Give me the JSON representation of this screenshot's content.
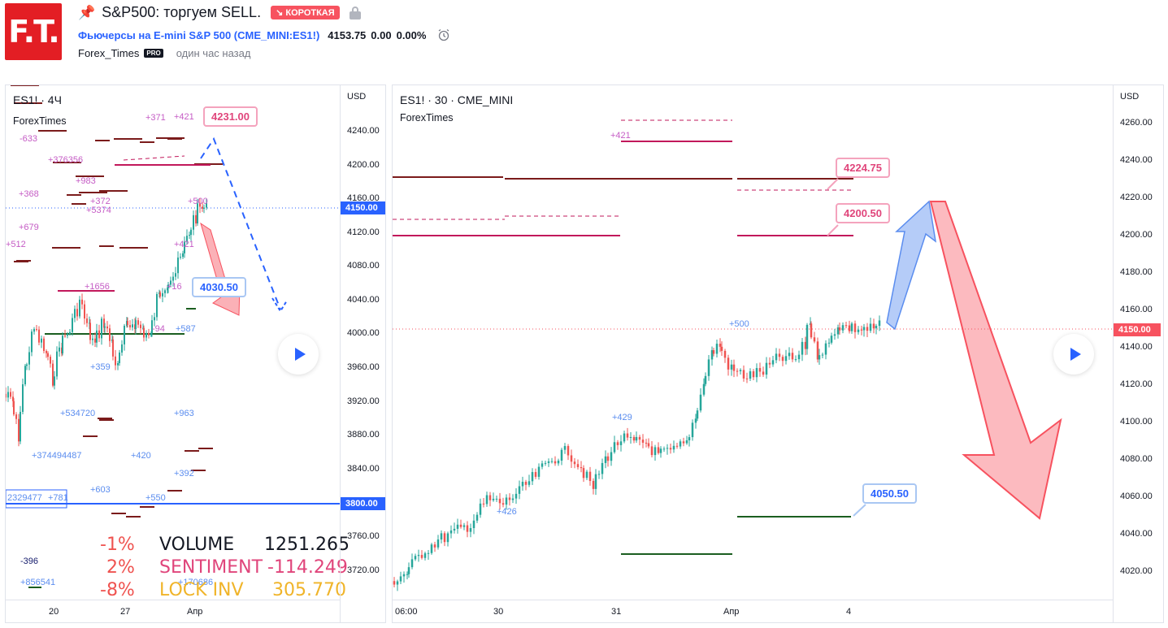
{
  "header": {
    "logo_text": "F.T.",
    "title": "S&P500: торгуем SELL.",
    "badge": "КОРОТКАЯ",
    "symbol_desc": "Фьючерсы на E-mini S&P 500",
    "symbol_code": "CME_MINI:ES1!",
    "last_price": "4153.75",
    "change": "0.00",
    "change_pct": "0.00%",
    "author": "Forex_Times",
    "author_badge": "PRO",
    "time_ago": "один час назад"
  },
  "left_chart": {
    "title": "ES1! · 4Ч",
    "subtitle": "ForexTimes",
    "unit": "USD",
    "y_ticks": [
      "4240.00",
      "4200.00",
      "4160.00",
      "4120.00",
      "4080.00",
      "4040.00",
      "4000.00",
      "3960.00",
      "3920.00",
      "3880.00",
      "3840.00",
      "3760.00",
      "3720.00"
    ],
    "x_ticks": [
      "20",
      "27",
      "Апр"
    ],
    "current_price": "4150.00",
    "line_price": "3800.00",
    "callout_sell": "4231.00",
    "callout_target": "4030.50",
    "annotations": [
      "+371",
      "+421",
      "-633",
      "+376356",
      "+983",
      "+368",
      "+372",
      "+5374",
      "+679",
      "+500",
      "+512",
      "+421",
      "+1656",
      "+16",
      "-94",
      "+587",
      "+359",
      "+534720",
      "+963",
      "+374494487",
      "+420",
      "+392",
      "+603",
      "+550",
      "2329477",
      "+781",
      "-396",
      "+856541",
      "+170686"
    ],
    "stats": [
      {
        "pct": "-1%",
        "name": "VOLUME",
        "value": "1251.265"
      },
      {
        "pct": "2%",
        "name": "SENTIMENT",
        "value": "-114.249"
      },
      {
        "pct": "-8%",
        "name": "LOCK INV",
        "value": "305.770"
      }
    ]
  },
  "right_chart": {
    "title": "ES1! · 30 · CME_MINI",
    "subtitle": "ForexTimes",
    "unit": "USD",
    "y_ticks": [
      "4260.00",
      "4240.00",
      "4220.00",
      "4200.00",
      "4180.00",
      "4160.00",
      "4140.00",
      "4120.00",
      "4100.00",
      "4080.00",
      "4060.00",
      "4040.00",
      "4020.00"
    ],
    "x_ticks": [
      "06:00",
      "30",
      "31",
      "Апр",
      "4"
    ],
    "current_price": "4150.00",
    "callout_1": "4224.75",
    "callout_2": "4200.50",
    "callout_3": "4050.50",
    "annotations": [
      "+421",
      "+500",
      "+429",
      "+426"
    ]
  },
  "colors": {
    "brand_red": "#e31e24",
    "short_badge": "#f7525f",
    "link_blue": "#2962ff",
    "price_tag": "#2962ff",
    "up_candle": "#26a69a",
    "down_candle": "#ef5350",
    "sell_arrow": "#f7525f",
    "buy_arrow": "#5b8def",
    "stat_pct": "#ef5350",
    "stat_volume": "#131722",
    "stat_sentiment": "#e0457b",
    "stat_lock": "#f0b429"
  }
}
